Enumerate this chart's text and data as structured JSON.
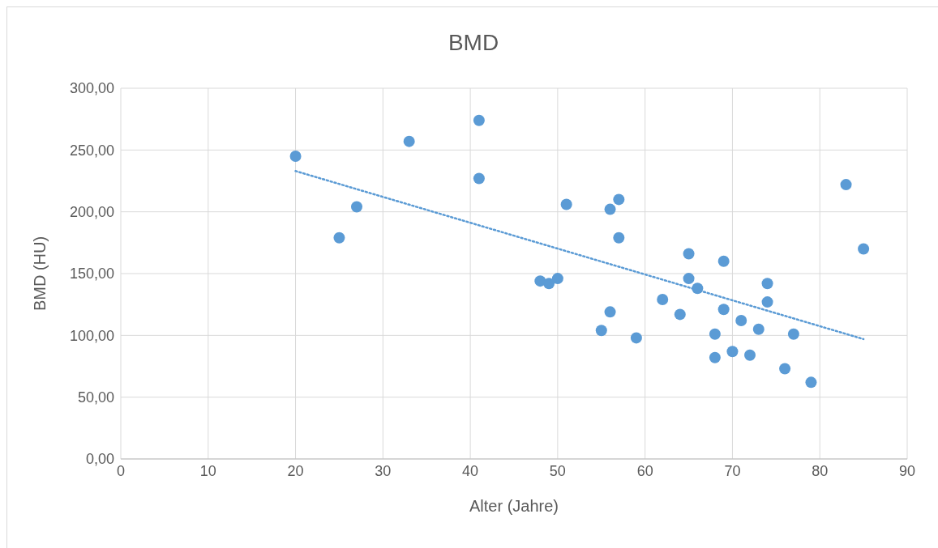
{
  "chart_data": {
    "type": "scatter",
    "title": "BMD",
    "xlabel": "Alter (Jahre)",
    "ylabel": "BMD (HU)",
    "xlim": [
      0,
      90
    ],
    "xticks": [
      0,
      10,
      20,
      30,
      40,
      50,
      60,
      70,
      80,
      90
    ],
    "ylim": [
      0,
      300
    ],
    "yticks": [
      {
        "value": 0,
        "label": "0,00"
      },
      {
        "value": 50,
        "label": "50,00"
      },
      {
        "value": 100,
        "label": "100,00"
      },
      {
        "value": 150,
        "label": "150,00"
      },
      {
        "value": 200,
        "label": "200,00"
      },
      {
        "value": 250,
        "label": "250,00"
      },
      {
        "value": 300,
        "label": "300,00"
      }
    ],
    "grid": true,
    "marker": "circle",
    "series": [
      {
        "color": "#5b9bd5",
        "x": [
          20,
          25,
          27,
          33,
          41,
          41,
          48,
          49,
          50,
          51,
          55,
          56,
          56,
          57,
          57,
          59,
          62,
          64,
          65,
          65,
          66,
          68,
          68,
          69,
          69,
          70,
          71,
          72,
          73,
          74,
          74,
          76,
          77,
          79,
          83,
          85
        ],
        "values": [
          245,
          179,
          204,
          257,
          274,
          227,
          144,
          142,
          146,
          206,
          104,
          202,
          119,
          210,
          179,
          98,
          129,
          117,
          166,
          146,
          138,
          101,
          82,
          160,
          121,
          87,
          112,
          84,
          105,
          142,
          127,
          73,
          101,
          62,
          222,
          170
        ]
      },
      {
        "type": "line",
        "color": "#5b9bd5",
        "line_style": "dotted",
        "marker": "none",
        "x": [
          20,
          85
        ],
        "values": [
          233,
          97
        ]
      }
    ]
  }
}
